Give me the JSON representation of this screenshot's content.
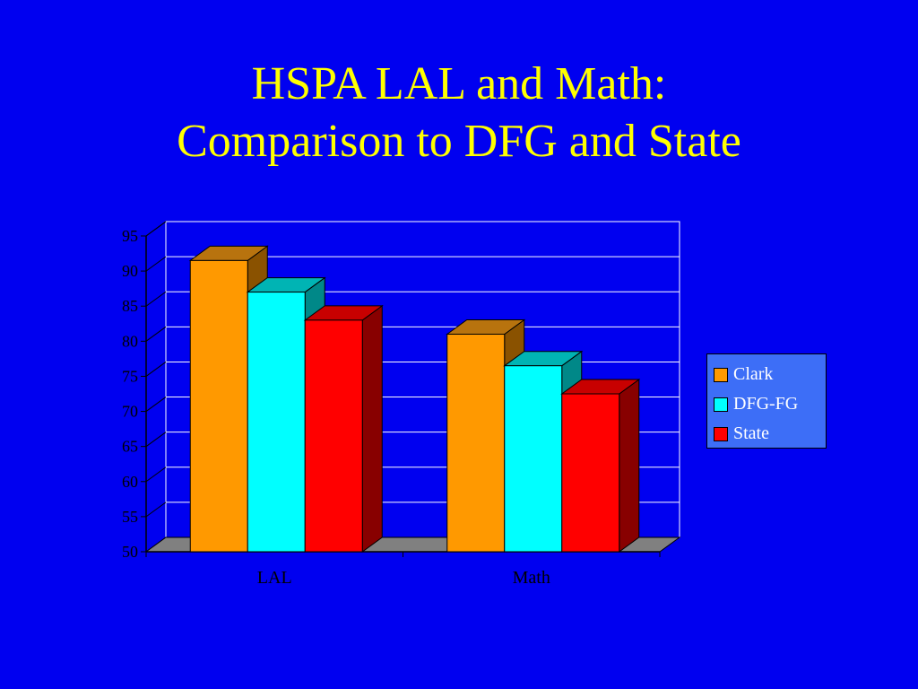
{
  "title": {
    "line1": "HSPA LAL and Math:",
    "line2": "Comparison to DFG and State"
  },
  "chart_data": {
    "type": "bar",
    "three_d": true,
    "categories": [
      "LAL",
      "Math"
    ],
    "series": [
      {
        "name": "Clark",
        "values": [
          91.5,
          81
        ],
        "color": "#ff9900",
        "top_color": "#b8730e",
        "side_color": "#8a5200"
      },
      {
        "name": "DFG-FG",
        "values": [
          87,
          76.5
        ],
        "color": "#00ffff",
        "top_color": "#00b4b4",
        "side_color": "#008888"
      },
      {
        "name": "State",
        "values": [
          83,
          72.5
        ],
        "color": "#ff0000",
        "top_color": "#c80000",
        "side_color": "#880000"
      }
    ],
    "y_ticks": [
      "50",
      "55",
      "60",
      "65",
      "70",
      "75",
      "80",
      "85",
      "90",
      "95"
    ],
    "ylim": [
      50,
      95
    ],
    "xlabel": "",
    "ylabel": "",
    "grid": true,
    "legend_position": "right",
    "plot_background": "#0000f0",
    "floor_color": "#808080",
    "text_color": "#000000"
  }
}
